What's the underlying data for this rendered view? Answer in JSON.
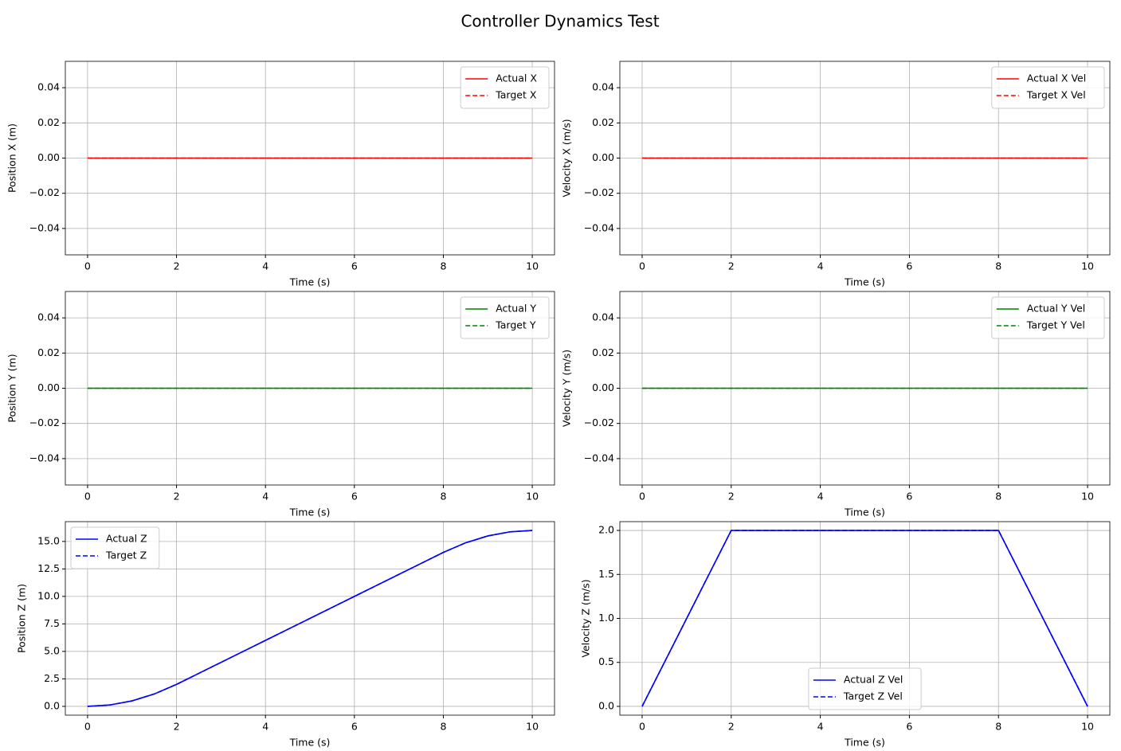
{
  "title": "Controller Dynamics Test",
  "chart_data": [
    {
      "type": "line",
      "xlabel": "Time (s)",
      "ylabel": "Position X (m)",
      "x": [
        0,
        10
      ],
      "series": [
        {
          "name": "Actual X",
          "color": "#ff0000",
          "linestyle": "solid",
          "values": [
            0,
            0
          ]
        },
        {
          "name": "Target X",
          "color": "#ff0000",
          "linestyle": "dashed",
          "values": [
            0,
            0
          ]
        }
      ],
      "xlim": [
        -0.5,
        10.5
      ],
      "ylim": [
        -0.055,
        0.055
      ],
      "xticks": [
        0,
        2,
        4,
        6,
        8,
        10
      ],
      "yticks": [
        {
          "value": -0.04,
          "label": "−0.04"
        },
        {
          "value": -0.02,
          "label": "−0.02"
        },
        {
          "value": 0,
          "label": "0.00"
        },
        0.02,
        0.04
      ],
      "grid": true,
      "legend": "upper right"
    },
    {
      "type": "line",
      "xlabel": "Time (s)",
      "ylabel": "Velocity X (m/s)",
      "x": [
        0,
        10
      ],
      "series": [
        {
          "name": "Actual X Vel",
          "color": "#ff0000",
          "linestyle": "solid",
          "values": [
            0,
            0
          ]
        },
        {
          "name": "Target X Vel",
          "color": "#ff0000",
          "linestyle": "dashed",
          "values": [
            0,
            0
          ]
        }
      ],
      "xlim": [
        -0.5,
        10.5
      ],
      "ylim": [
        -0.055,
        0.055
      ],
      "xticks": [
        0,
        2,
        4,
        6,
        8,
        10
      ],
      "yticks": [
        {
          "value": -0.04,
          "label": "−0.04"
        },
        {
          "value": -0.02,
          "label": "−0.02"
        },
        {
          "value": 0,
          "label": "0.00"
        },
        0.02,
        0.04
      ],
      "grid": true,
      "legend": "upper right"
    },
    {
      "type": "line",
      "xlabel": "Time (s)",
      "ylabel": "Position Y (m)",
      "x": [
        0,
        10
      ],
      "series": [
        {
          "name": "Actual Y",
          "color": "#008000",
          "linestyle": "solid",
          "values": [
            0,
            0
          ]
        },
        {
          "name": "Target Y",
          "color": "#008000",
          "linestyle": "dashed",
          "values": [
            0,
            0
          ]
        }
      ],
      "xlim": [
        -0.5,
        10.5
      ],
      "ylim": [
        -0.055,
        0.055
      ],
      "xticks": [
        0,
        2,
        4,
        6,
        8,
        10
      ],
      "yticks": [
        {
          "value": -0.04,
          "label": "−0.04"
        },
        {
          "value": -0.02,
          "label": "−0.02"
        },
        {
          "value": 0,
          "label": "0.00"
        },
        0.02,
        0.04
      ],
      "grid": true,
      "legend": "upper right"
    },
    {
      "type": "line",
      "xlabel": "Time (s)",
      "ylabel": "Velocity Y (m/s)",
      "x": [
        0,
        10
      ],
      "series": [
        {
          "name": "Actual Y Vel",
          "color": "#008000",
          "linestyle": "solid",
          "values": [
            0,
            0
          ]
        },
        {
          "name": "Target Y Vel",
          "color": "#008000",
          "linestyle": "dashed",
          "values": [
            0,
            0
          ]
        }
      ],
      "xlim": [
        -0.5,
        10.5
      ],
      "ylim": [
        -0.055,
        0.055
      ],
      "xticks": [
        0,
        2,
        4,
        6,
        8,
        10
      ],
      "yticks": [
        {
          "value": -0.04,
          "label": "−0.04"
        },
        {
          "value": -0.02,
          "label": "−0.02"
        },
        {
          "value": 0,
          "label": "0.00"
        },
        0.02,
        0.04
      ],
      "grid": true,
      "legend": "upper right"
    },
    {
      "type": "line",
      "xlabel": "Time (s)",
      "ylabel": "Position Z (m)",
      "x": [
        0,
        0.5,
        1,
        1.5,
        2,
        2.5,
        3,
        3.5,
        4,
        4.5,
        5,
        5.5,
        6,
        6.5,
        7,
        7.5,
        8,
        8.5,
        9,
        9.5,
        10
      ],
      "series": [
        {
          "name": "Actual Z",
          "color": "#0000ff",
          "linestyle": "solid",
          "values": [
            0,
            0.125,
            0.5,
            1.125,
            2,
            3,
            4,
            5,
            6,
            7,
            8,
            9,
            10,
            11,
            12,
            13,
            14,
            14.875,
            15.5,
            15.875,
            16
          ]
        },
        {
          "name": "Target Z",
          "color": "#0000ff",
          "linestyle": "dashed",
          "values": [
            0,
            0.125,
            0.5,
            1.125,
            2,
            3,
            4,
            5,
            6,
            7,
            8,
            9,
            10,
            11,
            12,
            13,
            14,
            14.875,
            15.5,
            15.875,
            16
          ]
        }
      ],
      "xlim": [
        -0.5,
        10.5
      ],
      "ylim": [
        -0.8,
        16.8
      ],
      "xticks": [
        0,
        2,
        4,
        6,
        8,
        10
      ],
      "yticks": [
        {
          "value": 0,
          "label": "0.0"
        },
        2.5,
        {
          "value": 5,
          "label": "5.0"
        },
        7.5,
        {
          "value": 10,
          "label": "10.0"
        },
        12.5,
        {
          "value": 15,
          "label": "15.0"
        }
      ],
      "grid": true,
      "legend": "upper left"
    },
    {
      "type": "line",
      "xlabel": "Time (s)",
      "ylabel": "Velocity Z (m/s)",
      "x": [
        0,
        2,
        8,
        10
      ],
      "series": [
        {
          "name": "Actual Z Vel",
          "color": "#0000ff",
          "linestyle": "solid",
          "values": [
            0,
            2,
            2,
            0
          ]
        },
        {
          "name": "Target Z Vel",
          "color": "#0000ff",
          "linestyle": "dashed",
          "values": [
            0,
            2,
            2,
            0
          ]
        }
      ],
      "xlim": [
        -0.5,
        10.5
      ],
      "ylim": [
        -0.1,
        2.1
      ],
      "xticks": [
        0,
        2,
        4,
        6,
        8,
        10
      ],
      "yticks": [
        {
          "value": 0,
          "label": "0.0"
        },
        0.5,
        {
          "value": 1,
          "label": "1.0"
        },
        1.5,
        {
          "value": 2,
          "label": "2.0"
        }
      ],
      "grid": true,
      "legend": "lower center"
    }
  ]
}
